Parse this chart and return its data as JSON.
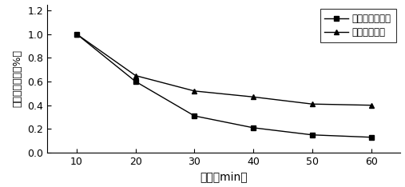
{
  "x": [
    10,
    20,
    30,
    40,
    50,
    60
  ],
  "y_device": [
    1.0,
    0.6,
    0.31,
    0.21,
    0.15,
    0.13
  ],
  "y_current": [
    1.0,
    0.65,
    0.52,
    0.47,
    0.41,
    0.4
  ],
  "xlabel": "时间（min）",
  "ylabel": "污染物剩余率（%）",
  "legend1": "本装置处理技术",
  "legend2": "现有处理技术",
  "xlim": [
    5,
    65
  ],
  "ylim": [
    0.0,
    1.25
  ],
  "yticks": [
    0.0,
    0.2,
    0.4,
    0.6,
    0.8,
    1.0,
    1.2
  ],
  "ytick_labels": [
    "0.0",
    "0.2",
    "0.4",
    "0.6",
    "0.8",
    "1.0",
    "1.2"
  ],
  "xticks": [
    10,
    20,
    30,
    40,
    50,
    60
  ],
  "color": "#000000",
  "background": "#ffffff"
}
